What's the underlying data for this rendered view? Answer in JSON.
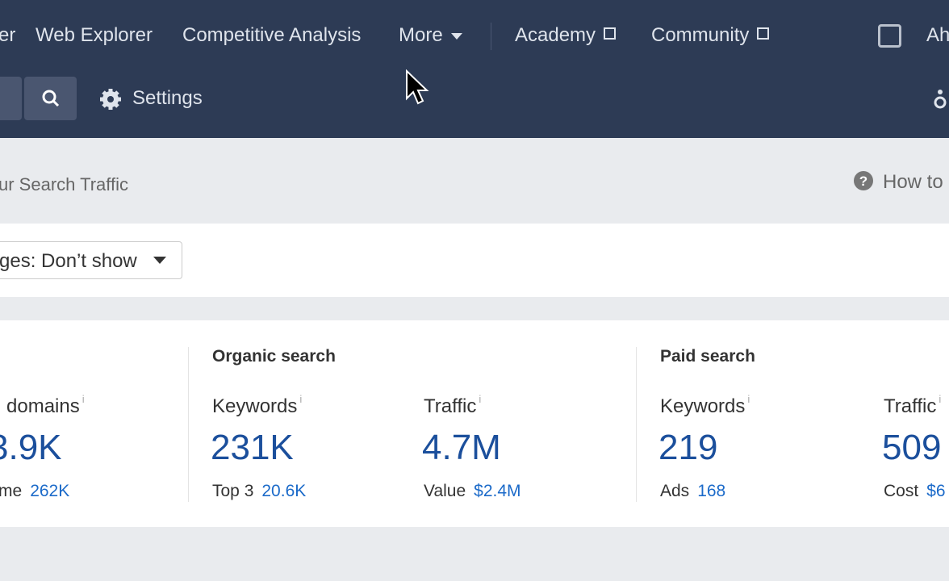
{
  "nav": {
    "items": [
      "er",
      "Web Explorer",
      "Competitive Analysis",
      "More",
      "Academy",
      "Community"
    ],
    "account": "Ah"
  },
  "toolbar": {
    "settings": "Settings"
  },
  "page": {
    "title": "ur Search Traffic",
    "help": "How to"
  },
  "filter": {
    "label": "ges: Don’t show"
  },
  "metrics": {
    "groups": [
      "Organic search",
      "Paid search"
    ],
    "items": [
      {
        "label": "domains",
        "value": "3.9K",
        "sub_label": "me",
        "sub_value": "262K"
      },
      {
        "label": "Keywords",
        "value": "231K",
        "sub_label": "Top 3",
        "sub_value": "20.6K"
      },
      {
        "label": "Traffic",
        "value": "4.7M",
        "sub_label": "Value",
        "sub_value": "$2.4M"
      },
      {
        "label": "Keywords",
        "value": "219",
        "sub_label": "Ads",
        "sub_value": "168"
      },
      {
        "label": "Traffic",
        "value": "509",
        "sub_label": "Cost",
        "sub_value": "$6"
      }
    ]
  }
}
